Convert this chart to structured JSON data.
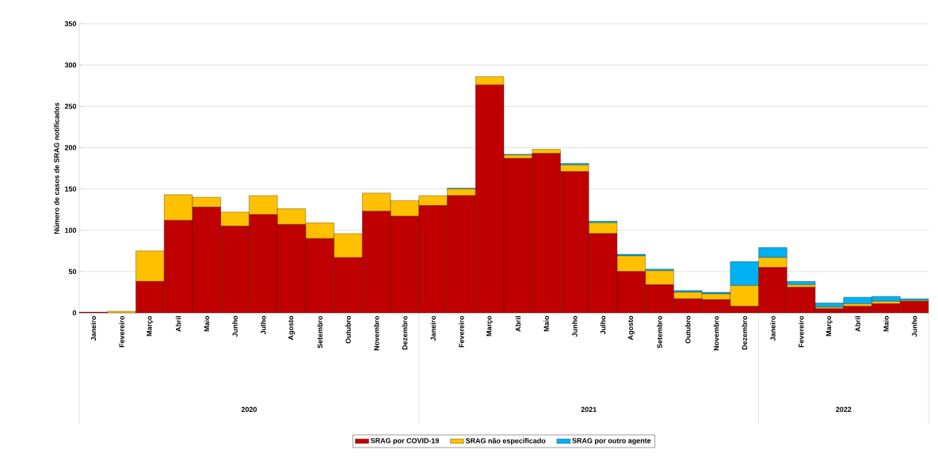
{
  "chart_data": {
    "type": "bar",
    "stacked": true,
    "ylabel": "Número de casos de SRAG notificados",
    "categories": [
      "Janeiro",
      "Fevereiro",
      "Março",
      "Abril",
      "Maio",
      "Junho",
      "Julho",
      "Agosto",
      "Setembro",
      "Outubro",
      "Novembro",
      "Dezembro",
      "Janeiro",
      "Fevereiro",
      "Março",
      "Abril",
      "Maio",
      "Junho",
      "Julho",
      "Agosto",
      "Setembro",
      "Outubro",
      "Novembro",
      "Dezembro",
      "Janeiro",
      "Fevereiro",
      "Março",
      "Abril",
      "Maio",
      "Junho"
    ],
    "series": [
      {
        "name": "SRAG por COVID-19",
        "color": "#c00000",
        "values": [
          1,
          0,
          38,
          112,
          128,
          105,
          119,
          107,
          90,
          67,
          123,
          117,
          130,
          142,
          276,
          187,
          193,
          171,
          96,
          50,
          34,
          17,
          16,
          8,
          55,
          31,
          5,
          8,
          11,
          14
        ]
      },
      {
        "name": "SRAG não especificado",
        "color": "#ffc000",
        "values": [
          0,
          2,
          37,
          31,
          12,
          17,
          23,
          19,
          19,
          29,
          22,
          19,
          12,
          8,
          10,
          4,
          5,
          8,
          13,
          19,
          17,
          8,
          7,
          25,
          12,
          3,
          2,
          3,
          3,
          1
        ]
      },
      {
        "name": "SRAG por outro agente",
        "color": "#00b0f0",
        "values": [
          0,
          0,
          0,
          0,
          0,
          0,
          0,
          0,
          0,
          0,
          0,
          0,
          0,
          1,
          0,
          1,
          0,
          2,
          2,
          2,
          2,
          2,
          2,
          29,
          12,
          4,
          5,
          8,
          6,
          2
        ]
      }
    ],
    "ylim": [
      0,
      350
    ],
    "yticks": [
      0,
      50,
      100,
      150,
      200,
      250,
      300,
      350
    ],
    "grid": "y",
    "legend": "bottom",
    "annotations": [
      "2020",
      "2021",
      "2022"
    ]
  }
}
